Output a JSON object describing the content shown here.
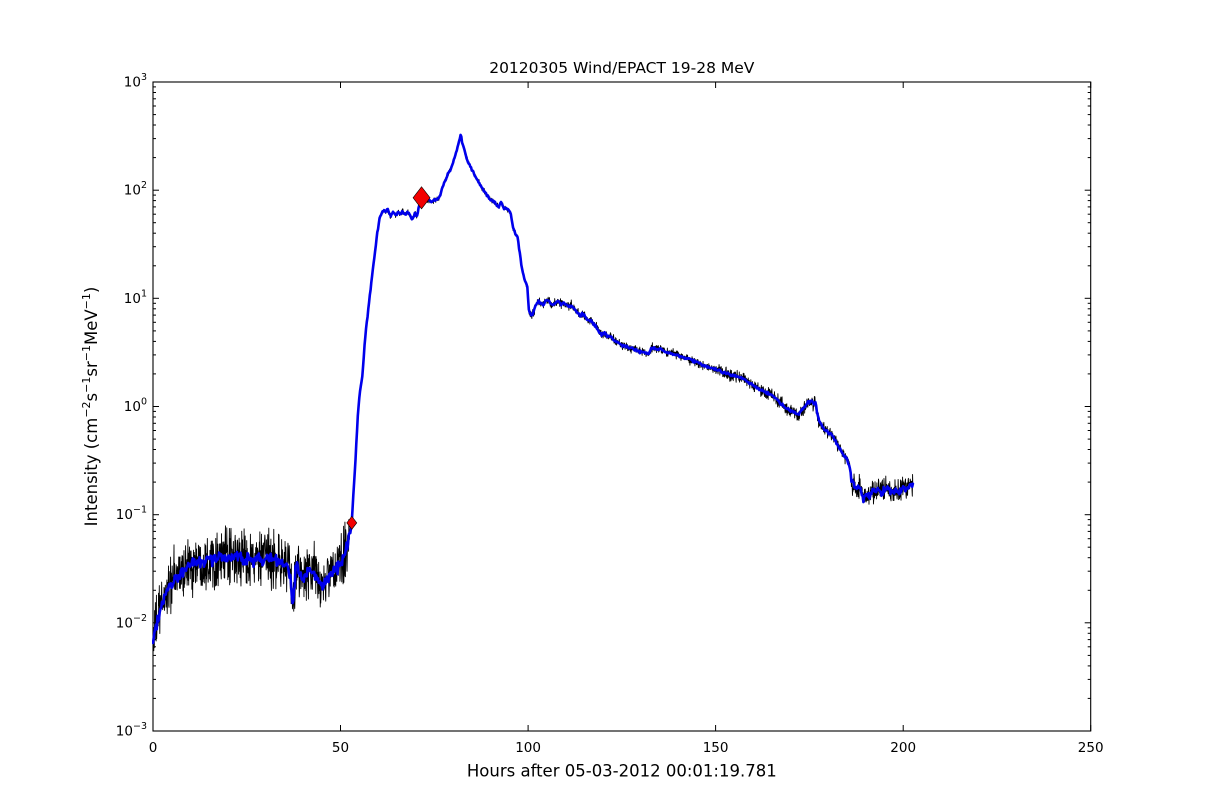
{
  "figure": {
    "background": "#ffffff"
  },
  "chart_data": {
    "type": "line",
    "title": "20120305 Wind/EPACT 19-28 MeV",
    "xlabel": "Hours after 05-03-2012 00:01:19.781",
    "ylabel": "Intensity (cm−2s−1sr−1MeV−1)",
    "ylabel_parts": [
      {
        "t": "Intensity (cm"
      },
      {
        "t": "−2",
        "sup": true
      },
      {
        "t": "s"
      },
      {
        "t": "−1",
        "sup": true
      },
      {
        "t": "sr"
      },
      {
        "t": "−1",
        "sup": true
      },
      {
        "t": "MeV"
      },
      {
        "t": "−1",
        "sup": true
      },
      {
        "t": ")"
      }
    ],
    "x_range": [
      0,
      250
    ],
    "y_log_range": [
      -3,
      3
    ],
    "x_ticks": [
      0,
      50,
      100,
      150,
      200,
      250
    ],
    "y_tick_exponents": [
      3,
      2,
      1,
      0,
      -1,
      -2,
      -3
    ],
    "grid": false,
    "legend": null,
    "axes_color": "#000000",
    "background_color": "#ffffff",
    "series": [
      {
        "name": "raw-intensity",
        "color": "#000000",
        "linewidth": 0.9,
        "style": "noisy",
        "sample_step_hours": 0.07,
        "noise_seed": 1234,
        "noise_decades": [
          {
            "from": 0,
            "to": 52.5,
            "amp": 0.125
          },
          {
            "from": 52.5,
            "to": 60,
            "amp": 0.02
          },
          {
            "from": 60,
            "to": 99.5,
            "amp": 0.012
          },
          {
            "from": 99.5,
            "to": 150,
            "amp": 0.02
          },
          {
            "from": 150,
            "to": 186,
            "amp": 0.028
          },
          {
            "from": 186,
            "to": 203,
            "amp": 0.05
          }
        ]
      },
      {
        "name": "smoothed-intensity",
        "color": "#0000ec",
        "linewidth": 2.6,
        "style": "smooth",
        "sample_step_hours": 0.2,
        "noise_seed": 77,
        "noise_decades": [
          {
            "from": 0,
            "to": 52.5,
            "amp": 0.028
          },
          {
            "from": 52.5,
            "to": 186,
            "amp": 0.006
          },
          {
            "from": 186,
            "to": 203,
            "amp": 0.014
          }
        ]
      }
    ],
    "anchors_hours_value": [
      [
        0,
        0.0068
      ],
      [
        0.4,
        0.008
      ],
      [
        0.8,
        0.0095
      ],
      [
        1.2,
        0.011
      ],
      [
        1.7,
        0.0125
      ],
      [
        2.2,
        0.0145
      ],
      [
        2.7,
        0.016
      ],
      [
        3.2,
        0.018
      ],
      [
        4,
        0.021
      ],
      [
        5,
        0.0235
      ],
      [
        6,
        0.026
      ],
      [
        7,
        0.0285
      ],
      [
        8,
        0.0305
      ],
      [
        9,
        0.0325
      ],
      [
        10,
        0.034
      ],
      [
        11,
        0.0355
      ],
      [
        12,
        0.0365
      ],
      [
        13,
        0.0375
      ],
      [
        14,
        0.038
      ],
      [
        15,
        0.0385
      ],
      [
        16,
        0.039
      ],
      [
        17,
        0.0395
      ],
      [
        18,
        0.04
      ],
      [
        19,
        0.0395
      ],
      [
        20,
        0.04
      ],
      [
        21,
        0.0395
      ],
      [
        22,
        0.039
      ],
      [
        23,
        0.0395
      ],
      [
        24,
        0.04
      ],
      [
        25,
        0.0395
      ],
      [
        26,
        0.039
      ],
      [
        27,
        0.0385
      ],
      [
        28,
        0.038
      ],
      [
        29,
        0.0385
      ],
      [
        30,
        0.039
      ],
      [
        31,
        0.0385
      ],
      [
        32,
        0.038
      ],
      [
        33,
        0.0375
      ],
      [
        34,
        0.037
      ],
      [
        35,
        0.0365
      ],
      [
        35.8,
        0.035
      ],
      [
        36.5,
        0.027
      ],
      [
        37.3,
        0.014
      ],
      [
        37.9,
        0.027
      ],
      [
        38.4,
        0.035
      ],
      [
        38.9,
        0.031
      ],
      [
        39.4,
        0.028
      ],
      [
        39.9,
        0.024
      ],
      [
        40.4,
        0.026
      ],
      [
        41.1,
        0.029
      ],
      [
        41.8,
        0.03
      ],
      [
        42.5,
        0.0295
      ],
      [
        43.2,
        0.028
      ],
      [
        44,
        0.026
      ],
      [
        44.7,
        0.023
      ],
      [
        45.3,
        0.0215
      ],
      [
        46,
        0.024
      ],
      [
        46.8,
        0.027
      ],
      [
        47.5,
        0.029
      ],
      [
        48.2,
        0.0305
      ],
      [
        49,
        0.032
      ],
      [
        49.7,
        0.034
      ],
      [
        50.4,
        0.0365
      ],
      [
        51.2,
        0.042
      ],
      [
        52,
        0.055
      ],
      [
        52.6,
        0.068
      ],
      [
        53,
        0.084
      ],
      [
        53.5,
        0.17
      ],
      [
        54,
        0.32
      ],
      [
        54.7,
        0.95
      ],
      [
        55.3,
        1.5
      ],
      [
        55.8,
        1.85
      ],
      [
        56.5,
        4.1
      ],
      [
        57.3,
        7.5
      ],
      [
        58.2,
        14
      ],
      [
        59,
        24
      ],
      [
        59.8,
        40
      ],
      [
        60.4,
        55
      ],
      [
        61,
        62
      ],
      [
        61.5,
        65
      ],
      [
        62,
        63
      ],
      [
        62.5,
        66
      ],
      [
        63,
        61
      ],
      [
        63.4,
        56
      ],
      [
        64,
        64
      ],
      [
        64.8,
        58
      ],
      [
        65.4,
        63
      ],
      [
        66,
        60
      ],
      [
        66.6,
        64
      ],
      [
        67.2,
        59
      ],
      [
        67.8,
        63
      ],
      [
        68.4,
        60
      ],
      [
        69,
        54
      ],
      [
        69.5,
        57
      ],
      [
        69.9,
        63
      ],
      [
        70.3,
        55
      ],
      [
        70.8,
        68
      ],
      [
        71.2,
        77
      ],
      [
        71.6,
        85
      ],
      [
        72.2,
        82
      ],
      [
        73,
        80
      ],
      [
        73.6,
        81
      ],
      [
        74.3,
        78
      ],
      [
        75,
        80
      ],
      [
        75.6,
        83
      ],
      [
        76.1,
        84
      ],
      [
        76.6,
        92
      ],
      [
        77.4,
        112
      ],
      [
        78.3,
        132
      ],
      [
        78.8,
        143
      ],
      [
        79.2,
        152
      ],
      [
        79.8,
        170
      ],
      [
        80.5,
        205
      ],
      [
        81,
        236
      ],
      [
        81.6,
        280
      ],
      [
        82.05,
        330
      ],
      [
        82.5,
        270
      ],
      [
        82.9,
        243
      ],
      [
        83.6,
        199
      ],
      [
        84.5,
        167
      ],
      [
        85.9,
        135
      ],
      [
        87.2,
        113
      ],
      [
        88.2,
        100
      ],
      [
        89,
        91
      ],
      [
        90,
        81
      ],
      [
        90.8,
        79
      ],
      [
        91.5,
        73
      ],
      [
        92.2,
        70
      ],
      [
        92.7,
        76
      ],
      [
        93.1,
        74
      ],
      [
        93.5,
        68
      ],
      [
        94.3,
        68
      ],
      [
        94.8,
        65
      ],
      [
        95.3,
        62
      ],
      [
        96,
        45
      ],
      [
        96.6,
        40
      ],
      [
        97.2,
        37
      ],
      [
        97.8,
        26
      ],
      [
        98.4,
        18.5
      ],
      [
        99,
        15
      ],
      [
        99.5,
        13.5
      ],
      [
        99.9,
        12.5
      ],
      [
        100.1,
        8
      ],
      [
        100.5,
        7.3
      ],
      [
        101,
        6.9
      ],
      [
        101.5,
        7.6
      ],
      [
        102,
        8.5
      ],
      [
        102.7,
        9.3
      ],
      [
        103.3,
        9
      ],
      [
        104,
        8.7
      ],
      [
        104.6,
        9.4
      ],
      [
        105.2,
        9.6
      ],
      [
        106,
        9
      ],
      [
        106.6,
        8.6
      ],
      [
        107.2,
        9.2
      ],
      [
        108,
        9.4
      ],
      [
        108.8,
        8.8
      ],
      [
        109.5,
        9.1
      ],
      [
        110,
        8.8
      ],
      [
        110.8,
        8.5
      ],
      [
        111.5,
        8.6
      ],
      [
        112.5,
        7.8
      ],
      [
        113.3,
        7.2
      ],
      [
        114,
        6.8
      ],
      [
        114.6,
        7.2
      ],
      [
        115.2,
        6.7
      ],
      [
        116,
        6.2
      ],
      [
        116.8,
        6.3
      ],
      [
        117.9,
        5.6
      ],
      [
        118.8,
        5
      ],
      [
        119.6,
        4.6
      ],
      [
        120.5,
        4.8
      ],
      [
        121.3,
        4.4
      ],
      [
        121.9,
        4.5
      ],
      [
        122.8,
        4.15
      ],
      [
        123.8,
        3.95
      ],
      [
        124.8,
        3.75
      ],
      [
        125.8,
        3.6
      ],
      [
        127,
        3.5
      ],
      [
        128.1,
        3.45
      ],
      [
        129,
        3.3
      ],
      [
        130,
        3.2
      ],
      [
        131,
        3.15
      ],
      [
        132.1,
        3.1
      ],
      [
        133,
        3.45
      ],
      [
        134,
        3.42
      ],
      [
        135.6,
        3.4
      ],
      [
        136.6,
        3.2
      ],
      [
        138.8,
        3.05
      ],
      [
        141.4,
        2.85
      ],
      [
        144.1,
        2.65
      ],
      [
        146.8,
        2.39
      ],
      [
        149.4,
        2.23
      ],
      [
        152.1,
        2.07
      ],
      [
        154.8,
        1.93
      ],
      [
        157.4,
        1.8
      ],
      [
        160.1,
        1.56
      ],
      [
        162.3,
        1.41
      ],
      [
        164.5,
        1.3
      ],
      [
        166,
        1.2
      ],
      [
        167,
        1.1
      ],
      [
        168.1,
        1
      ],
      [
        169.9,
        0.93
      ],
      [
        172.1,
        0.84
      ],
      [
        173.2,
        0.95
      ],
      [
        174.3,
        1.07
      ],
      [
        175.6,
        1.13
      ],
      [
        176.1,
        1.05
      ],
      [
        176.6,
        1.1
      ],
      [
        177,
        0.9
      ],
      [
        177.6,
        0.73
      ],
      [
        178.8,
        0.62
      ],
      [
        180,
        0.58
      ],
      [
        181.3,
        0.53
      ],
      [
        182.2,
        0.46
      ],
      [
        183.2,
        0.4
      ],
      [
        184.2,
        0.35
      ],
      [
        185,
        0.33
      ],
      [
        185.9,
        0.26
      ],
      [
        186.3,
        0.2
      ],
      [
        187.6,
        0.168
      ],
      [
        188.3,
        0.185
      ],
      [
        189.4,
        0.14
      ],
      [
        190.2,
        0.155
      ],
      [
        191,
        0.145
      ],
      [
        191.8,
        0.17
      ],
      [
        192.6,
        0.16
      ],
      [
        193.4,
        0.175
      ],
      [
        194.2,
        0.16
      ],
      [
        195,
        0.17
      ],
      [
        195.8,
        0.175
      ],
      [
        196.6,
        0.158
      ],
      [
        197.4,
        0.165
      ],
      [
        198.2,
        0.17
      ],
      [
        199,
        0.16
      ],
      [
        199.8,
        0.18
      ],
      [
        200.6,
        0.175
      ],
      [
        201.4,
        0.185
      ],
      [
        202.2,
        0.19
      ],
      [
        202.6,
        0.195
      ]
    ],
    "markers": [
      {
        "shape": "diamond",
        "color": "#f20000",
        "edge_color": "#000000",
        "x": 53,
        "y": 0.084,
        "size": 10
      },
      {
        "shape": "diamond",
        "color": "#f20000",
        "edge_color": "#000000",
        "x": 71.6,
        "y": 85,
        "size": 17
      }
    ]
  }
}
